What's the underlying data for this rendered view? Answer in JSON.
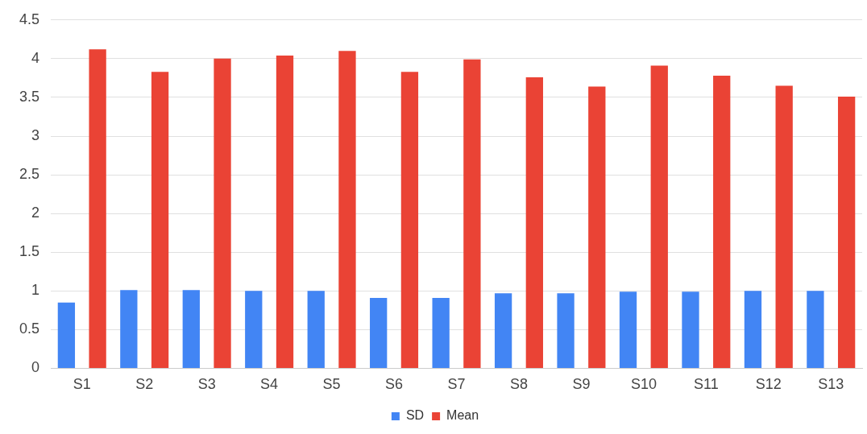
{
  "chart_data": {
    "type": "bar",
    "categories": [
      "S1",
      "S2",
      "S3",
      "S4",
      "S5",
      "S6",
      "S7",
      "S8",
      "S9",
      "S10",
      "S11",
      "S12",
      "S13"
    ],
    "series": [
      {
        "name": "SD",
        "color": "#4285f4",
        "values": [
          0.85,
          1.01,
          1.01,
          1.0,
          1.0,
          0.91,
          0.91,
          0.97,
          0.97,
          0.99,
          0.99,
          1.0,
          1.0
        ]
      },
      {
        "name": "Mean",
        "color": "#ea4335",
        "values": [
          4.12,
          3.83,
          4.0,
          4.04,
          4.1,
          3.83,
          3.99,
          3.76,
          3.64,
          3.91,
          3.78,
          3.65,
          3.51
        ]
      }
    ],
    "ylim": [
      0,
      4.5
    ],
    "yticks": [
      0,
      0.5,
      1,
      1.5,
      2,
      2.5,
      3,
      3.5,
      4,
      4.5
    ],
    "grid": "y",
    "legend": "bottom"
  }
}
